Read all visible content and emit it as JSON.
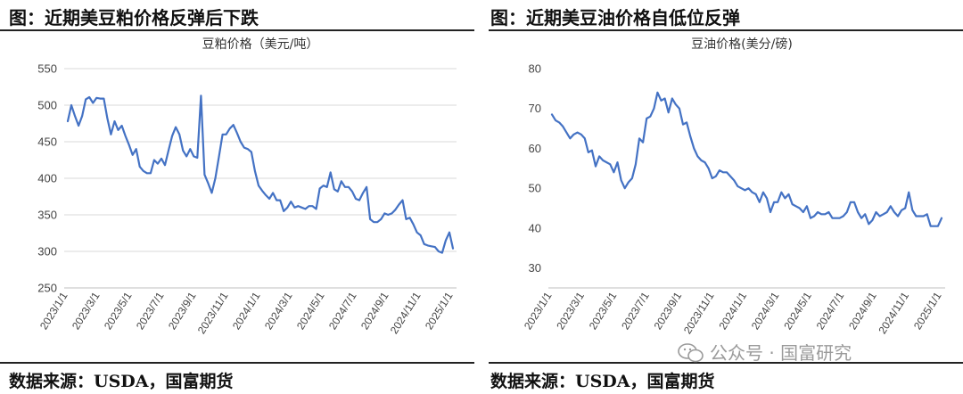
{
  "panels": [
    {
      "heading": "图：近期美豆粕价格反弹后下跌",
      "source": "数据来源：USDA，国富期货"
    },
    {
      "heading": "图：近期美豆油价格自低位反弹",
      "source": "数据来源：USDA，国富期货"
    }
  ],
  "watermark": {
    "text": "公众号 · 国富研究",
    "icon": "wechat-icon"
  },
  "colors": {
    "series": "#4472C4",
    "grid": "#d9d9d9"
  },
  "chart_data": [
    {
      "type": "line",
      "title": "豆粕价格（美元/吨）",
      "xlabel": "",
      "ylabel": "",
      "ylim": [
        250,
        550
      ],
      "yticks": [
        250,
        300,
        350,
        400,
        450,
        500,
        550
      ],
      "grid": true,
      "x_tick_labels": [
        "2023/1/1",
        "2023/3/1",
        "2023/5/1",
        "2023/7/1",
        "2023/9/1",
        "2023/11/1",
        "2024/1/1",
        "2024/3/1",
        "2024/5/1",
        "2024/7/1",
        "2024/9/1",
        "2024/11/1",
        "2025/1/1"
      ],
      "series": [
        {
          "name": "",
          "values": [
            478,
            500,
            485,
            472,
            485,
            508,
            511,
            503,
            510,
            509,
            509,
            482,
            460,
            478,
            466,
            472,
            458,
            446,
            432,
            440,
            416,
            410,
            407,
            407,
            425,
            420,
            427,
            418,
            438,
            458,
            470,
            460,
            438,
            430,
            440,
            430,
            428,
            513,
            405,
            393,
            380,
            400,
            430,
            460,
            460,
            468,
            473,
            462,
            450,
            442,
            440,
            436,
            410,
            390,
            383,
            377,
            372,
            380,
            370,
            370,
            355,
            360,
            368,
            360,
            362,
            360,
            358,
            362,
            362,
            358,
            386,
            390,
            388,
            408,
            385,
            382,
            396,
            388,
            388,
            382,
            372,
            370,
            380,
            388,
            344,
            340,
            340,
            344,
            352,
            350,
            352,
            357,
            364,
            370,
            344,
            346,
            337,
            326,
            322,
            310,
            308,
            307,
            306,
            300,
            298,
            315,
            326,
            304
          ]
        }
      ]
    },
    {
      "type": "line",
      "title": "豆油价格(美分/磅)",
      "xlabel": "",
      "ylabel": "",
      "ylim": [
        25,
        80
      ],
      "yticks": [
        30,
        40,
        50,
        60,
        70,
        80
      ],
      "grid": false,
      "x_tick_labels": [
        "2023/1/1",
        "2023/3/1",
        "2023/5/1",
        "2023/7/1",
        "2023/9/1",
        "2023/11/1",
        "2024/1/1",
        "2024/3/1",
        "2024/5/1",
        "2024/7/1",
        "2024/9/1",
        "2024/11/1",
        "2025/1/1"
      ],
      "series": [
        {
          "name": "",
          "values": [
            68.5,
            67,
            66.5,
            65.5,
            64,
            62.5,
            63.5,
            64,
            63.5,
            62.5,
            59,
            59.5,
            55.5,
            58,
            57,
            56.5,
            56,
            54,
            56.5,
            52,
            50,
            51.5,
            52.5,
            56,
            62.5,
            61.5,
            67.5,
            68,
            70,
            74,
            72,
            72.5,
            69,
            72.5,
            71,
            70,
            66,
            66.5,
            63,
            60,
            58,
            57,
            56.5,
            55,
            52.5,
            53,
            54.5,
            54,
            54,
            53,
            52,
            50.5,
            50,
            49.5,
            50,
            49,
            48.5,
            46.5,
            49,
            47.5,
            44,
            46.5,
            46.5,
            49,
            47.5,
            48.5,
            46,
            45.5,
            45,
            44,
            45.5,
            42.5,
            43,
            44,
            43.5,
            43.5,
            44,
            42.5,
            42.5,
            42.5,
            43,
            44,
            46.5,
            46.5,
            44,
            42.5,
            43.5,
            41,
            42,
            44,
            43,
            43.5,
            44,
            45.5,
            44,
            43,
            44.5,
            45,
            49,
            44.5,
            43,
            43,
            43,
            43.5,
            40.5,
            40.5,
            40.5,
            42.5
          ]
        }
      ]
    }
  ]
}
